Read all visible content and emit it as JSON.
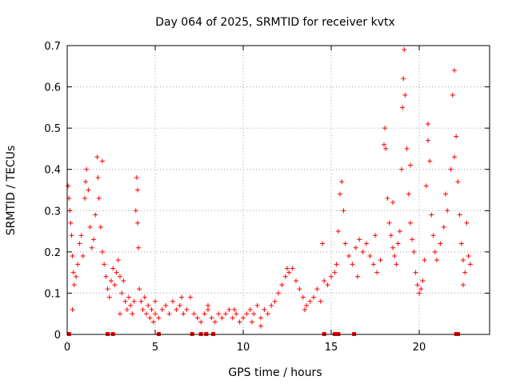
{
  "chart_data": {
    "type": "scatter",
    "title": "Day 064 of 2025, SRMTID for receiver kvtx",
    "xlabel": "GPS time / hours",
    "ylabel": "SRMTID / TECUs",
    "xlim": [
      0,
      24
    ],
    "ylim": [
      0,
      0.7
    ],
    "xticks": [
      0,
      5,
      10,
      15,
      20
    ],
    "yticks": [
      0,
      0.1,
      0.2,
      0.3,
      0.4,
      0.5,
      0.6,
      0.7
    ],
    "grid": true,
    "marker": "plus",
    "color": "#ff0000",
    "series": [
      {
        "name": "SRMTID",
        "points": [
          [
            0.05,
            0.36
          ],
          [
            0.1,
            0.33
          ],
          [
            0.15,
            0.3
          ],
          [
            0.2,
            0.27
          ],
          [
            0.25,
            0.24
          ],
          [
            0.3,
            0.19
          ],
          [
            0.35,
            0.15
          ],
          [
            0.4,
            0.12
          ],
          [
            0.5,
            0.14
          ],
          [
            0.6,
            0.17
          ],
          [
            0.7,
            0.22
          ],
          [
            0.8,
            0.24
          ],
          [
            0.9,
            0.19
          ],
          [
            1.0,
            0.33
          ],
          [
            1.05,
            0.37
          ],
          [
            1.1,
            0.4
          ],
          [
            1.2,
            0.35
          ],
          [
            1.3,
            0.26
          ],
          [
            1.4,
            0.21
          ],
          [
            1.5,
            0.23
          ],
          [
            1.6,
            0.29
          ],
          [
            1.7,
            0.43
          ],
          [
            1.75,
            0.38
          ],
          [
            1.8,
            0.33
          ],
          [
            1.9,
            0.26
          ],
          [
            2.0,
            0.2
          ],
          [
            2.1,
            0.17
          ],
          [
            2.2,
            0.14
          ],
          [
            2.3,
            0.11
          ],
          [
            2.4,
            0.09
          ],
          [
            2.5,
            0.13
          ],
          [
            2.6,
            0.16
          ],
          [
            2.7,
            0.12
          ],
          [
            2.8,
            0.15
          ],
          [
            2.9,
            0.18
          ],
          [
            3.0,
            0.14
          ],
          [
            3.1,
            0.1
          ],
          [
            3.2,
            0.13
          ],
          [
            3.3,
            0.08
          ],
          [
            3.4,
            0.06
          ],
          [
            3.5,
            0.09
          ],
          [
            3.6,
            0.07
          ],
          [
            3.7,
            0.05
          ],
          [
            3.8,
            0.08
          ],
          [
            3.9,
            0.3
          ],
          [
            3.95,
            0.38
          ],
          [
            4.0,
            0.27
          ],
          [
            4.05,
            0.21
          ],
          [
            4.1,
            0.11
          ],
          [
            4.2,
            0.08
          ],
          [
            4.3,
            0.06
          ],
          [
            4.4,
            0.09
          ],
          [
            4.5,
            0.05
          ],
          [
            4.6,
            0.07
          ],
          [
            4.7,
            0.04
          ],
          [
            4.8,
            0.06
          ],
          [
            4.9,
            0.03
          ],
          [
            5.0,
            0.05
          ],
          [
            5.2,
            0.04
          ],
          [
            5.4,
            0.06
          ],
          [
            5.6,
            0.07
          ],
          [
            5.8,
            0.05
          ],
          [
            6.0,
            0.08
          ],
          [
            6.2,
            0.06
          ],
          [
            6.4,
            0.07
          ],
          [
            6.6,
            0.05
          ],
          [
            6.8,
            0.06
          ],
          [
            7.0,
            0.09
          ],
          [
            7.2,
            0.05
          ],
          [
            7.4,
            0.04
          ],
          [
            7.6,
            0.03
          ],
          [
            7.8,
            0.05
          ],
          [
            8.0,
            0.06
          ],
          [
            8.2,
            0.04
          ],
          [
            8.4,
            0.03
          ],
          [
            8.6,
            0.05
          ],
          [
            8.8,
            0.04
          ],
          [
            9.0,
            0.05
          ],
          [
            9.2,
            0.06
          ],
          [
            9.4,
            0.04
          ],
          [
            9.6,
            0.05
          ],
          [
            9.8,
            0.03
          ],
          [
            10.0,
            0.04
          ],
          [
            10.2,
            0.05
          ],
          [
            10.4,
            0.06
          ],
          [
            10.6,
            0.05
          ],
          [
            10.8,
            0.07
          ],
          [
            11.0,
            0.04
          ],
          [
            11.2,
            0.06
          ],
          [
            11.4,
            0.05
          ],
          [
            11.6,
            0.07
          ],
          [
            11.8,
            0.08
          ],
          [
            12.0,
            0.1
          ],
          [
            12.2,
            0.12
          ],
          [
            12.4,
            0.14
          ],
          [
            12.6,
            0.15
          ],
          [
            12.8,
            0.16
          ],
          [
            13.0,
            0.13
          ],
          [
            13.2,
            0.11
          ],
          [
            13.4,
            0.09
          ],
          [
            13.6,
            0.07
          ],
          [
            13.8,
            0.08
          ],
          [
            14.0,
            0.09
          ],
          [
            14.2,
            0.11
          ],
          [
            14.4,
            0.08
          ],
          [
            14.6,
            0.13
          ],
          [
            14.8,
            0.12
          ],
          [
            15.0,
            0.14
          ],
          [
            15.2,
            0.15
          ],
          [
            15.3,
            0.17
          ],
          [
            15.4,
            0.25
          ],
          [
            15.5,
            0.34
          ],
          [
            15.6,
            0.37
          ],
          [
            15.7,
            0.3
          ],
          [
            15.8,
            0.22
          ],
          [
            16.0,
            0.19
          ],
          [
            16.2,
            0.17
          ],
          [
            16.4,
            0.21
          ],
          [
            16.6,
            0.23
          ],
          [
            16.8,
            0.2
          ],
          [
            17.0,
            0.22
          ],
          [
            17.2,
            0.19
          ],
          [
            17.4,
            0.17
          ],
          [
            17.6,
            0.15
          ],
          [
            17.8,
            0.18
          ],
          [
            18.0,
            0.46
          ],
          [
            18.05,
            0.5
          ],
          [
            18.1,
            0.45
          ],
          [
            18.2,
            0.33
          ],
          [
            18.3,
            0.27
          ],
          [
            18.4,
            0.24
          ],
          [
            18.5,
            0.21
          ],
          [
            18.6,
            0.19
          ],
          [
            18.7,
            0.17
          ],
          [
            18.8,
            0.22
          ],
          [
            18.9,
            0.25
          ],
          [
            19.0,
            0.4
          ],
          [
            19.05,
            0.55
          ],
          [
            19.1,
            0.62
          ],
          [
            19.15,
            0.69
          ],
          [
            19.2,
            0.58
          ],
          [
            19.3,
            0.45
          ],
          [
            19.4,
            0.34
          ],
          [
            19.5,
            0.27
          ],
          [
            19.6,
            0.23
          ],
          [
            19.7,
            0.2
          ],
          [
            19.8,
            0.15
          ],
          [
            19.9,
            0.12
          ],
          [
            20.0,
            0.1
          ],
          [
            20.1,
            0.11
          ],
          [
            20.2,
            0.13
          ],
          [
            20.3,
            0.18
          ],
          [
            20.4,
            0.36
          ],
          [
            20.5,
            0.51
          ],
          [
            20.6,
            0.42
          ],
          [
            20.7,
            0.29
          ],
          [
            20.8,
            0.24
          ],
          [
            20.9,
            0.2
          ],
          [
            21.0,
            0.18
          ],
          [
            21.2,
            0.22
          ],
          [
            21.4,
            0.26
          ],
          [
            21.6,
            0.3
          ],
          [
            21.8,
            0.4
          ],
          [
            21.9,
            0.58
          ],
          [
            22.0,
            0.64
          ],
          [
            22.1,
            0.48
          ],
          [
            22.2,
            0.37
          ],
          [
            22.3,
            0.29
          ],
          [
            22.4,
            0.22
          ],
          [
            22.5,
            0.18
          ],
          [
            22.6,
            0.15
          ],
          [
            22.7,
            0.27
          ],
          [
            22.8,
            0.19
          ],
          [
            22.9,
            0.17
          ],
          [
            0.3,
            0.06
          ],
          [
            2.0,
            0.42
          ],
          [
            3.0,
            0.05
          ],
          [
            4.0,
            0.35
          ],
          [
            5.0,
            0.08
          ],
          [
            6.5,
            0.09
          ],
          [
            8.0,
            0.07
          ],
          [
            9.5,
            0.06
          ],
          [
            10.5,
            0.03
          ],
          [
            11.0,
            0.02
          ],
          [
            12.5,
            0.16
          ],
          [
            13.5,
            0.06
          ],
          [
            14.5,
            0.22
          ],
          [
            16.5,
            0.14
          ],
          [
            17.5,
            0.24
          ],
          [
            18.5,
            0.32
          ],
          [
            19.5,
            0.41
          ],
          [
            20.5,
            0.47
          ],
          [
            21.5,
            0.34
          ],
          [
            22.0,
            0.43
          ],
          [
            22.5,
            0.12
          ]
        ]
      }
    ],
    "baseline_markers": [
      0.1,
      2.3,
      2.6,
      5.2,
      7.1,
      7.6,
      7.9,
      8.3,
      14.6,
      15.2,
      15.4,
      16.3,
      22.1,
      22.2
    ]
  }
}
